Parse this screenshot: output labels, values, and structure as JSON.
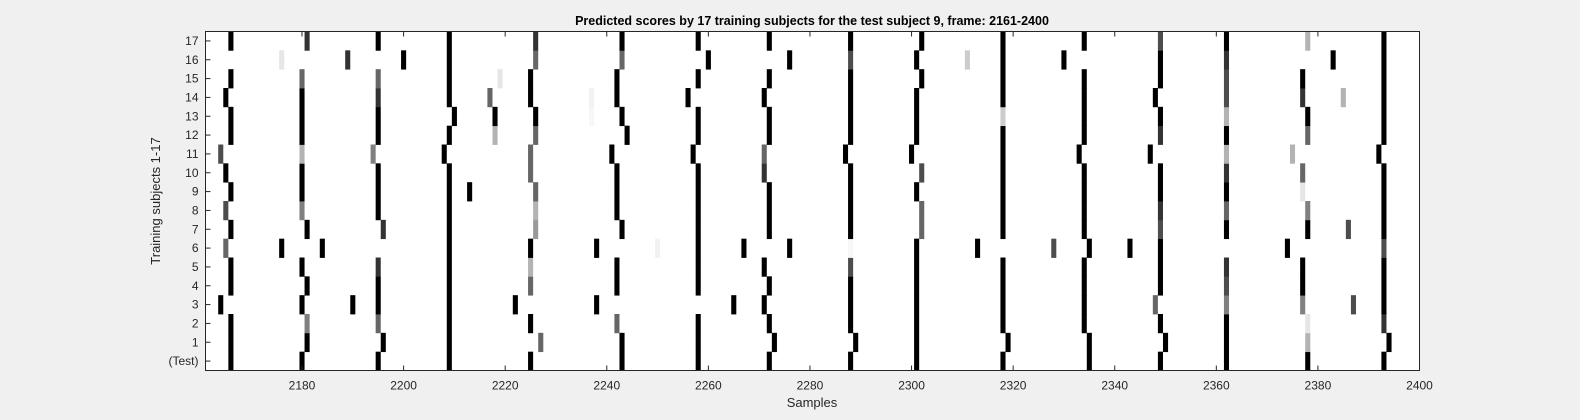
{
  "chart_data": {
    "type": "heatmap",
    "title": "Predicted scores by 17 training subjects for the test subject 9, frame: 2161-2400",
    "xlabel": "Samples",
    "ylabel": "Training subjects 1-17",
    "xlim": [
      2161,
      2400
    ],
    "xticks": [
      2180,
      2200,
      2220,
      2240,
      2260,
      2280,
      2300,
      2320,
      2340,
      2360,
      2380,
      2400
    ],
    "rows": [
      "(Test)",
      "1",
      "2",
      "3",
      "4",
      "5",
      "6",
      "7",
      "8",
      "9",
      "10",
      "11",
      "12",
      "13",
      "14",
      "15",
      "16",
      "17"
    ],
    "colorscale": "gray, 0 = white, 1 = black",
    "cells": [
      {
        "row": "(Test)",
        "marks": [
          [
            2166,
            1
          ],
          [
            2180,
            1
          ],
          [
            2195,
            1
          ],
          [
            2209,
            1
          ],
          [
            2225,
            1
          ],
          [
            2243,
            1
          ],
          [
            2258,
            1
          ],
          [
            2272,
            1
          ],
          [
            2288,
            1
          ],
          [
            2301,
            1
          ],
          [
            2318,
            1
          ],
          [
            2335,
            1
          ],
          [
            2349,
            1
          ],
          [
            2362,
            1
          ],
          [
            2378,
            1
          ],
          [
            2393,
            1
          ]
        ]
      },
      {
        "row": "1",
        "marks": [
          [
            2166,
            1
          ],
          [
            2181,
            1
          ],
          [
            2196,
            1
          ],
          [
            2209,
            1
          ],
          [
            2227,
            0.6
          ],
          [
            2243,
            1
          ],
          [
            2258,
            1
          ],
          [
            2273,
            1
          ],
          [
            2289,
            1
          ],
          [
            2301,
            1
          ],
          [
            2319,
            1
          ],
          [
            2335,
            1
          ],
          [
            2350,
            1
          ],
          [
            2362,
            1
          ],
          [
            2378,
            0.3
          ],
          [
            2394,
            1
          ]
        ]
      },
      {
        "row": "2",
        "marks": [
          [
            2166,
            1
          ],
          [
            2181,
            0.5
          ],
          [
            2195,
            0.6
          ],
          [
            2209,
            1
          ],
          [
            2225,
            1
          ],
          [
            2242,
            0.6
          ],
          [
            2258,
            1
          ],
          [
            2272,
            1
          ],
          [
            2288,
            1
          ],
          [
            2301,
            1
          ],
          [
            2318,
            1
          ],
          [
            2334,
            1
          ],
          [
            2349,
            1
          ],
          [
            2362,
            1
          ],
          [
            2378,
            0.1
          ],
          [
            2393,
            0.8
          ]
        ]
      },
      {
        "row": "3",
        "marks": [
          [
            2164,
            1
          ],
          [
            2180,
            1
          ],
          [
            2190,
            1
          ],
          [
            2195,
            1
          ],
          [
            2209,
            1
          ],
          [
            2222,
            1
          ],
          [
            2238,
            1
          ],
          [
            2265,
            1
          ],
          [
            2271,
            1
          ],
          [
            2288,
            1
          ],
          [
            2301,
            1
          ],
          [
            2318,
            1
          ],
          [
            2334,
            1
          ],
          [
            2348,
            0.6
          ],
          [
            2362,
            0.5
          ],
          [
            2377,
            0.5
          ],
          [
            2387,
            0.7
          ],
          [
            2393,
            1
          ]
        ]
      },
      {
        "row": "4",
        "marks": [
          [
            2166,
            1
          ],
          [
            2181,
            1
          ],
          [
            2195,
            1
          ],
          [
            2209,
            1
          ],
          [
            2225,
            0.6
          ],
          [
            2242,
            1
          ],
          [
            2258,
            1
          ],
          [
            2272,
            1
          ],
          [
            2288,
            1
          ],
          [
            2301,
            1
          ],
          [
            2318,
            1
          ],
          [
            2334,
            1
          ],
          [
            2349,
            1
          ],
          [
            2362,
            0.7
          ],
          [
            2377,
            1
          ],
          [
            2393,
            1
          ]
        ]
      },
      {
        "row": "5",
        "marks": [
          [
            2166,
            1
          ],
          [
            2180,
            1
          ],
          [
            2195,
            0.8
          ],
          [
            2209,
            1
          ],
          [
            2225,
            0.3
          ],
          [
            2242,
            1
          ],
          [
            2258,
            1
          ],
          [
            2271,
            1
          ],
          [
            2288,
            0.7
          ],
          [
            2301,
            1
          ],
          [
            2318,
            1
          ],
          [
            2334,
            1
          ],
          [
            2349,
            1
          ],
          [
            2362,
            0.8
          ],
          [
            2377,
            1
          ],
          [
            2393,
            1
          ]
        ]
      },
      {
        "row": "6",
        "marks": [
          [
            2165,
            0.6
          ],
          [
            2176,
            1
          ],
          [
            2184,
            1
          ],
          [
            2209,
            1
          ],
          [
            2225,
            1
          ],
          [
            2238,
            1
          ],
          [
            2250,
            0.05
          ],
          [
            2258,
            1
          ],
          [
            2267,
            1
          ],
          [
            2276,
            1
          ],
          [
            2288,
            0.03
          ],
          [
            2301,
            1
          ],
          [
            2313,
            1
          ],
          [
            2328,
            0.7
          ],
          [
            2335,
            1
          ],
          [
            2343,
            1
          ],
          [
            2349,
            1
          ],
          [
            2374,
            1
          ],
          [
            2393,
            0.7
          ]
        ]
      },
      {
        "row": "7",
        "marks": [
          [
            2166,
            1
          ],
          [
            2181,
            1
          ],
          [
            2196,
            0.8
          ],
          [
            2209,
            1
          ],
          [
            2226,
            0.4
          ],
          [
            2243,
            1
          ],
          [
            2258,
            1
          ],
          [
            2272,
            1
          ],
          [
            2288,
            1
          ],
          [
            2302,
            0.6
          ],
          [
            2318,
            1
          ],
          [
            2334,
            1
          ],
          [
            2349,
            0.7
          ],
          [
            2362,
            1
          ],
          [
            2378,
            1
          ],
          [
            2386,
            0.7
          ],
          [
            2393,
            1
          ]
        ]
      },
      {
        "row": "8",
        "marks": [
          [
            2165,
            0.7
          ],
          [
            2180,
            0.5
          ],
          [
            2195,
            1
          ],
          [
            2209,
            1
          ],
          [
            2226,
            0.3
          ],
          [
            2242,
            1
          ],
          [
            2258,
            1
          ],
          [
            2272,
            1
          ],
          [
            2288,
            1
          ],
          [
            2302,
            0.6
          ],
          [
            2318,
            1
          ],
          [
            2334,
            1
          ],
          [
            2349,
            0.8
          ],
          [
            2362,
            0.6
          ],
          [
            2378,
            0.5
          ],
          [
            2393,
            1
          ]
        ]
      },
      {
        "row": "9",
        "marks": [
          [
            2166,
            1
          ],
          [
            2180,
            1
          ],
          [
            2195,
            1
          ],
          [
            2209,
            1
          ],
          [
            2213,
            1
          ],
          [
            2226,
            0.6
          ],
          [
            2242,
            1
          ],
          [
            2258,
            1
          ],
          [
            2272,
            1
          ],
          [
            2288,
            1
          ],
          [
            2301,
            1
          ],
          [
            2318,
            1
          ],
          [
            2334,
            1
          ],
          [
            2349,
            1
          ],
          [
            2362,
            1
          ],
          [
            2377,
            0.1
          ],
          [
            2393,
            1
          ]
        ]
      },
      {
        "row": "10",
        "marks": [
          [
            2165,
            1
          ],
          [
            2180,
            1
          ],
          [
            2195,
            1
          ],
          [
            2209,
            1
          ],
          [
            2225,
            0.6
          ],
          [
            2242,
            1
          ],
          [
            2258,
            1
          ],
          [
            2271,
            0.8
          ],
          [
            2288,
            1
          ],
          [
            2302,
            0.7
          ],
          [
            2318,
            1
          ],
          [
            2334,
            1
          ],
          [
            2349,
            1
          ],
          [
            2362,
            0.8
          ],
          [
            2377,
            0.6
          ],
          [
            2393,
            1
          ]
        ]
      },
      {
        "row": "11",
        "marks": [
          [
            2164,
            0.7
          ],
          [
            2180,
            0.3
          ],
          [
            2194,
            0.5
          ],
          [
            2208,
            1
          ],
          [
            2225,
            0.6
          ],
          [
            2241,
            1
          ],
          [
            2257,
            1
          ],
          [
            2271,
            0.6
          ],
          [
            2287,
            1
          ],
          [
            2300,
            1
          ],
          [
            2318,
            1
          ],
          [
            2333,
            1
          ],
          [
            2347,
            1
          ],
          [
            2362,
            0.3
          ],
          [
            2375,
            0.3
          ],
          [
            2392,
            1
          ]
        ]
      },
      {
        "row": "12",
        "marks": [
          [
            2166,
            1
          ],
          [
            2180,
            1
          ],
          [
            2195,
            1
          ],
          [
            2209,
            1
          ],
          [
            2218,
            0.3
          ],
          [
            2226,
            0.6
          ],
          [
            2244,
            1
          ],
          [
            2258,
            1
          ],
          [
            2272,
            1
          ],
          [
            2288,
            1
          ],
          [
            2301,
            1
          ],
          [
            2318,
            1
          ],
          [
            2334,
            1
          ],
          [
            2349,
            0.8
          ],
          [
            2362,
            1
          ],
          [
            2378,
            0.6
          ],
          [
            2393,
            1
          ]
        ]
      },
      {
        "row": "13",
        "marks": [
          [
            2166,
            1
          ],
          [
            2180,
            1
          ],
          [
            2195,
            1
          ],
          [
            2210,
            1
          ],
          [
            2218,
            1
          ],
          [
            2226,
            1
          ],
          [
            2237,
            0.03
          ],
          [
            2243,
            1
          ],
          [
            2258,
            1
          ],
          [
            2272,
            1
          ],
          [
            2288,
            1
          ],
          [
            2301,
            1
          ],
          [
            2318,
            0.2
          ],
          [
            2334,
            1
          ],
          [
            2349,
            1
          ],
          [
            2362,
            0.3
          ],
          [
            2378,
            1
          ],
          [
            2393,
            1
          ]
        ]
      },
      {
        "row": "14",
        "marks": [
          [
            2165,
            1
          ],
          [
            2180,
            1
          ],
          [
            2195,
            0.8
          ],
          [
            2209,
            1
          ],
          [
            2217,
            0.6
          ],
          [
            2225,
            1
          ],
          [
            2237,
            0.05
          ],
          [
            2242,
            1
          ],
          [
            2256,
            1
          ],
          [
            2271,
            1
          ],
          [
            2288,
            1
          ],
          [
            2301,
            1
          ],
          [
            2318,
            1
          ],
          [
            2334,
            1
          ],
          [
            2348,
            1
          ],
          [
            2362,
            0.7
          ],
          [
            2377,
            0.8
          ],
          [
            2385,
            0.3
          ],
          [
            2393,
            1
          ]
        ]
      },
      {
        "row": "15",
        "marks": [
          [
            2166,
            1
          ],
          [
            2180,
            0.6
          ],
          [
            2195,
            0.6
          ],
          [
            2209,
            1
          ],
          [
            2219,
            0.1
          ],
          [
            2225,
            1
          ],
          [
            2242,
            1
          ],
          [
            2258,
            1
          ],
          [
            2272,
            1
          ],
          [
            2288,
            1
          ],
          [
            2302,
            1
          ],
          [
            2318,
            1
          ],
          [
            2334,
            1
          ],
          [
            2349,
            1
          ],
          [
            2362,
            0.7
          ],
          [
            2377,
            1
          ],
          [
            2393,
            1
          ]
        ]
      },
      {
        "row": "16",
        "marks": [
          [
            2176,
            0.1
          ],
          [
            2189,
            0.8
          ],
          [
            2200,
            1
          ],
          [
            2209,
            1
          ],
          [
            2226,
            0.6
          ],
          [
            2243,
            0.6
          ],
          [
            2260,
            1
          ],
          [
            2276,
            1
          ],
          [
            2288,
            0.7
          ],
          [
            2301,
            1
          ],
          [
            2311,
            0.2
          ],
          [
            2318,
            1
          ],
          [
            2330,
            1
          ],
          [
            2349,
            1
          ],
          [
            2362,
            0.8
          ],
          [
            2383,
            1
          ],
          [
            2393,
            1
          ]
        ]
      },
      {
        "row": "17",
        "marks": [
          [
            2166,
            1
          ],
          [
            2181,
            0.8
          ],
          [
            2195,
            1
          ],
          [
            2209,
            1
          ],
          [
            2226,
            0.8
          ],
          [
            2243,
            1
          ],
          [
            2258,
            1
          ],
          [
            2272,
            1
          ],
          [
            2288,
            1
          ],
          [
            2302,
            1
          ],
          [
            2318,
            1
          ],
          [
            2334,
            1
          ],
          [
            2349,
            0.7
          ],
          [
            2362,
            1
          ],
          [
            2378,
            0.3
          ],
          [
            2393,
            1
          ]
        ]
      }
    ]
  }
}
